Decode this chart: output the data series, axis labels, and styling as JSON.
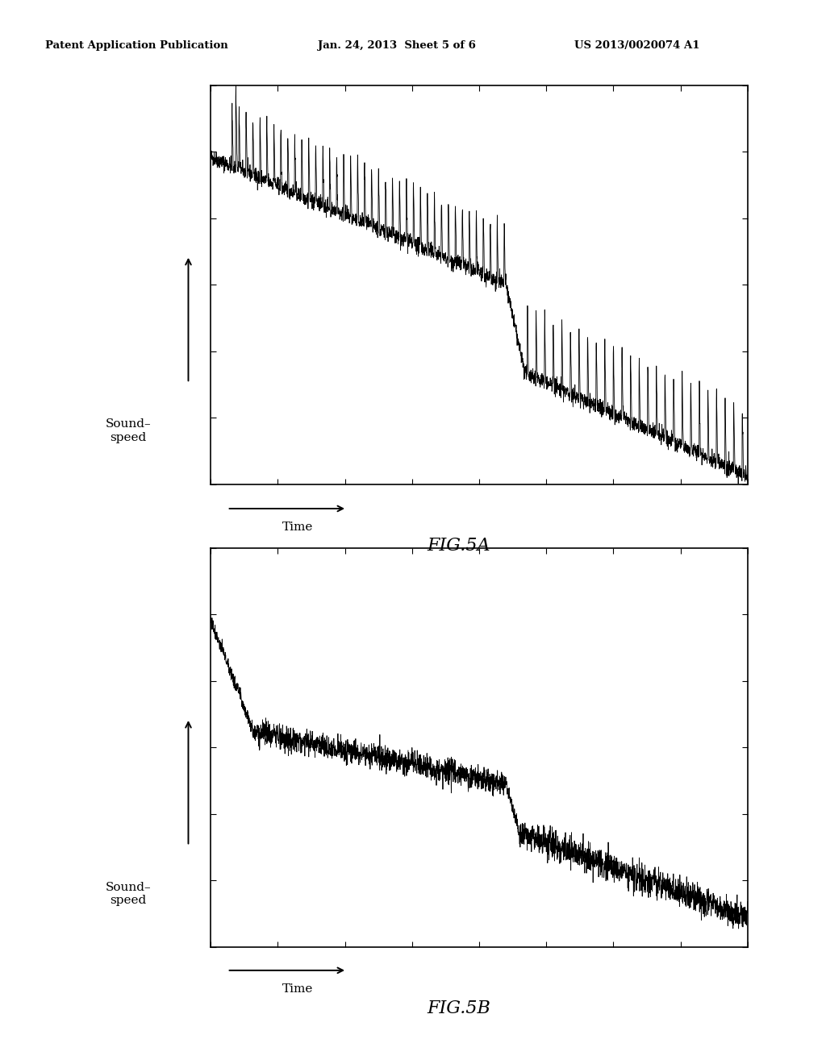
{
  "fig5a_label": "FIG.5A",
  "fig5b_label": "FIG.5B",
  "ylabel": "Sound–\nspeed",
  "xlabel": "Time",
  "header_left": "Patent Application Publication",
  "header_mid": "Jan. 24, 2013  Sheet 5 of 6",
  "header_right": "US 2013/0020074 A1",
  "background_color": "#ffffff",
  "line_color": "#000000",
  "seed_5a": 42,
  "seed_5b": 77,
  "n_points": 3000
}
